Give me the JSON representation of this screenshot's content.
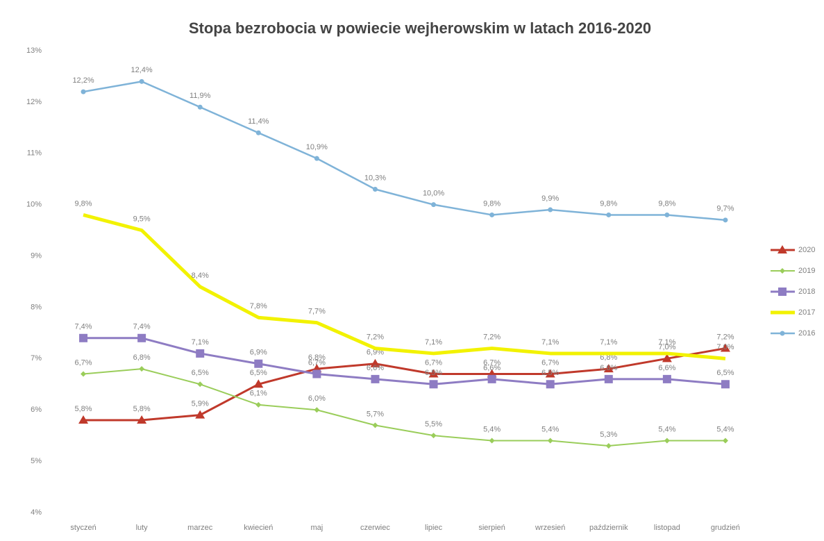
{
  "chart_data": {
    "type": "line",
    "title": "Stopa bezrobocia w powiecie wejherowskim w latach 2016-2020",
    "categories": [
      "styczeń",
      "luty",
      "marzec",
      "kwiecień",
      "maj",
      "czerwiec",
      "lipiec",
      "sierpień",
      "wrzesień",
      "październik",
      "listopad",
      "grudzień"
    ],
    "ylim": [
      4,
      13
    ],
    "yticks": [
      {
        "value": 4,
        "label": "4%"
      },
      {
        "value": 5,
        "label": "5%"
      },
      {
        "value": 6,
        "label": "6%"
      },
      {
        "value": 7,
        "label": "7%"
      },
      {
        "value": 8,
        "label": "8%"
      },
      {
        "value": 9,
        "label": "9%"
      },
      {
        "value": 10,
        "label": "10%"
      },
      {
        "value": 11,
        "label": "11%"
      },
      {
        "value": 12,
        "label": "12%"
      },
      {
        "value": 13,
        "label": "13%"
      }
    ],
    "grid": false,
    "legend": "right",
    "series": [
      {
        "name": "2020",
        "color": "#c0392b",
        "marker": "triangle",
        "width": 3,
        "values": [
          5.8,
          5.8,
          5.9,
          6.5,
          6.8,
          6.9,
          6.7,
          6.7,
          6.7,
          6.8,
          7.0,
          7.2
        ],
        "value_labels": [
          "5,8%",
          "5,8%",
          "5,9%",
          "6,5%",
          "6,8%",
          "6,9%",
          "6,7%",
          "6,7%",
          "6,7%",
          "6,8%",
          "7,0%",
          "7,2%"
        ]
      },
      {
        "name": "2019",
        "color": "#9acd5a",
        "marker": "diamond",
        "width": 2,
        "values": [
          6.7,
          6.8,
          6.5,
          6.1,
          6.0,
          5.7,
          5.5,
          5.4,
          5.4,
          5.3,
          5.4,
          5.4
        ],
        "value_labels": [
          "6,7%",
          "6,8%",
          "6,5%",
          "6,1%",
          "6,0%",
          "5,7%",
          "5,5%",
          "5,4%",
          "5,4%",
          "5,3%",
          "5,4%",
          "5,4%"
        ]
      },
      {
        "name": "2018",
        "color": "#8e7cc3",
        "marker": "square",
        "width": 3,
        "values": [
          7.4,
          7.4,
          7.1,
          6.9,
          6.7,
          6.6,
          6.5,
          6.6,
          6.5,
          6.6,
          6.6,
          6.5
        ],
        "value_labels": [
          "7,4%",
          "7,4%",
          "7,1%",
          "6,9%",
          "6,7%",
          "6,6%",
          "6,5%",
          "6,6%",
          "6,5%",
          "6,6%",
          "6,6%",
          "6,5%"
        ]
      },
      {
        "name": "2017",
        "color": "#f2f200",
        "width": 5,
        "values": [
          9.8,
          9.5,
          8.4,
          7.8,
          7.7,
          7.2,
          7.1,
          7.2,
          7.1,
          7.1,
          7.1,
          7.0
        ],
        "value_labels": [
          "9,8%",
          "9,5%",
          "8,4%",
          "7,8%",
          "7,7%",
          "7,2%",
          "7,1%",
          "7,2%",
          "7,1%",
          "7,1%",
          "7,1%",
          "7,0%"
        ]
      },
      {
        "name": "2016",
        "color": "#7fb3d8",
        "marker": "circle",
        "width": 2.5,
        "values": [
          12.2,
          12.4,
          11.9,
          11.4,
          10.9,
          10.3,
          10.0,
          9.8,
          9.9,
          9.8,
          9.8,
          9.7
        ],
        "value_labels": [
          "12,2%",
          "12,4%",
          "11,9%",
          "11,4%",
          "10,9%",
          "10,3%",
          "10,0%",
          "9,8%",
          "9,9%",
          "9,8%",
          "9,8%",
          "9,7%"
        ]
      }
    ]
  }
}
